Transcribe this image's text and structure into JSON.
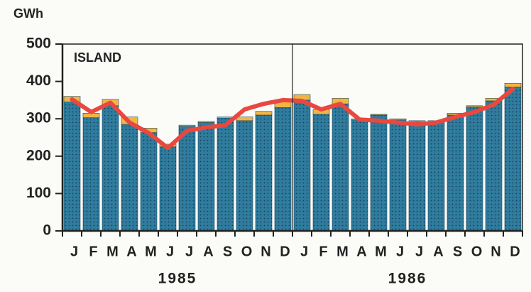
{
  "chart_data": {
    "type": "bar",
    "stacked": true,
    "y_label": "GWh",
    "annotation": "ISLAND",
    "categories": [
      "J",
      "F",
      "M",
      "A",
      "M",
      "J",
      "J",
      "A",
      "S",
      "O",
      "N",
      "D",
      "J",
      "F",
      "M",
      "A",
      "M",
      "J",
      "J",
      "A",
      "S",
      "O",
      "N",
      "D"
    ],
    "group_labels": [
      "1985",
      "1986"
    ],
    "series": [
      {
        "color": "#2f7c9e",
        "values": [
          345,
          303,
          335,
          285,
          263,
          225,
          280,
          290,
          302,
          295,
          310,
          330,
          350,
          312,
          340,
          297,
          310,
          297,
          292,
          292,
          310,
          332,
          348,
          385
        ]
      },
      {
        "color": "#f2b544",
        "values": [
          15,
          12,
          17,
          20,
          12,
          7,
          3,
          3,
          3,
          10,
          10,
          15,
          15,
          13,
          15,
          3,
          2,
          3,
          3,
          3,
          5,
          3,
          7,
          10
        ]
      },
      {
        "type": "line",
        "color": "#e9483f",
        "values": [
          352,
          318,
          343,
          290,
          262,
          222,
          268,
          277,
          283,
          325,
          340,
          350,
          348,
          325,
          340,
          298,
          295,
          290,
          285,
          290,
          305,
          318,
          338,
          380
        ]
      }
    ],
    "ylim": [
      0,
      500
    ],
    "yticks": [
      0,
      100,
      200,
      300,
      400,
      500
    ]
  }
}
